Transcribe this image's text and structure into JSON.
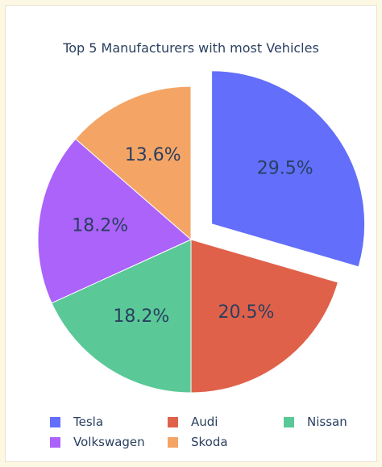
{
  "chart_data": {
    "type": "pie",
    "title": "Top 5 Manufacturers with most Vehicles",
    "categories": [
      "Tesla",
      "Audi",
      "Nissan",
      "Volkswagen",
      "Skoda"
    ],
    "values": [
      29.5,
      20.5,
      18.2,
      18.2,
      13.6
    ],
    "value_labels": [
      "29.5%",
      "20.5%",
      "18.2%",
      "18.2%",
      "13.6%"
    ],
    "colors": [
      "#636efa",
      "#e0614a",
      "#5ac897",
      "#ab63fa",
      "#f4a566"
    ],
    "pulled_slice": "Tesla",
    "legend_position": "bottom"
  }
}
